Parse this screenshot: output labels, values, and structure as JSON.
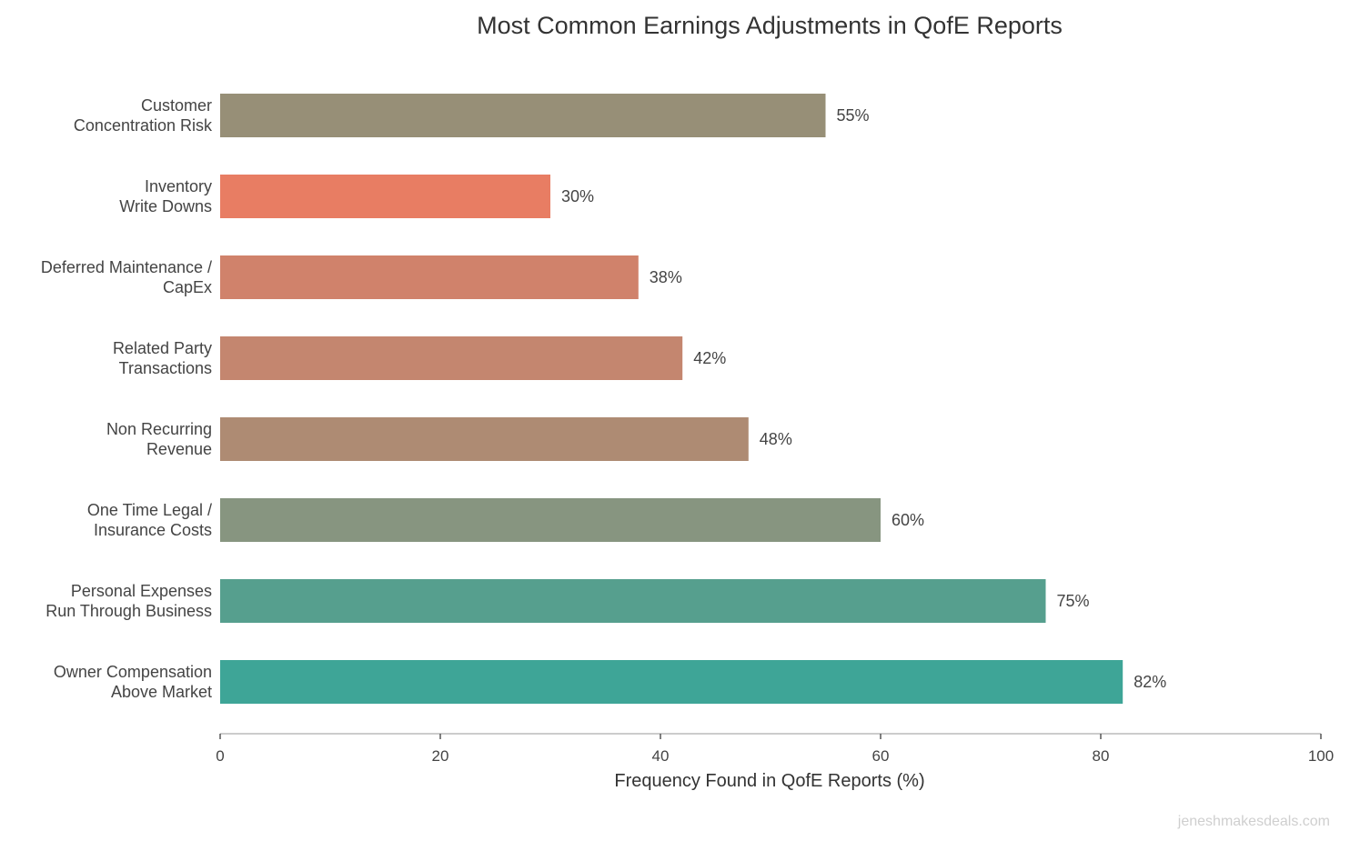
{
  "chart_data": {
    "type": "bar",
    "orientation": "horizontal",
    "title": "Most Common Earnings Adjustments in QofE Reports",
    "xlabel": "Frequency Found in QofE Reports (%)",
    "ylabel": "",
    "xlim": [
      0,
      100
    ],
    "xticks": [
      0,
      20,
      40,
      60,
      80,
      100
    ],
    "grid": false,
    "categories": [
      "Customer\nConcentration Risk",
      "Inventory\nWrite Downs",
      "Deferred Maintenance /\nCapEx",
      "Related Party\nTransactions",
      "Non Recurring\nRevenue",
      "One Time Legal /\nInsurance Costs",
      "Personal Expenses\nRun Through Business",
      "Owner Compensation\nAbove Market"
    ],
    "values": [
      55,
      30,
      38,
      42,
      48,
      60,
      75,
      82
    ],
    "data_labels": [
      "55%",
      "30%",
      "38%",
      "42%",
      "48%",
      "60%",
      "75%",
      "82%"
    ],
    "colors": [
      "#978F77",
      "#E87D63",
      "#D0826B",
      "#C4866F",
      "#AE8B73",
      "#879580",
      "#569F8E",
      "#3EA597"
    ]
  },
  "watermark": "jeneshmakesdeals.com"
}
